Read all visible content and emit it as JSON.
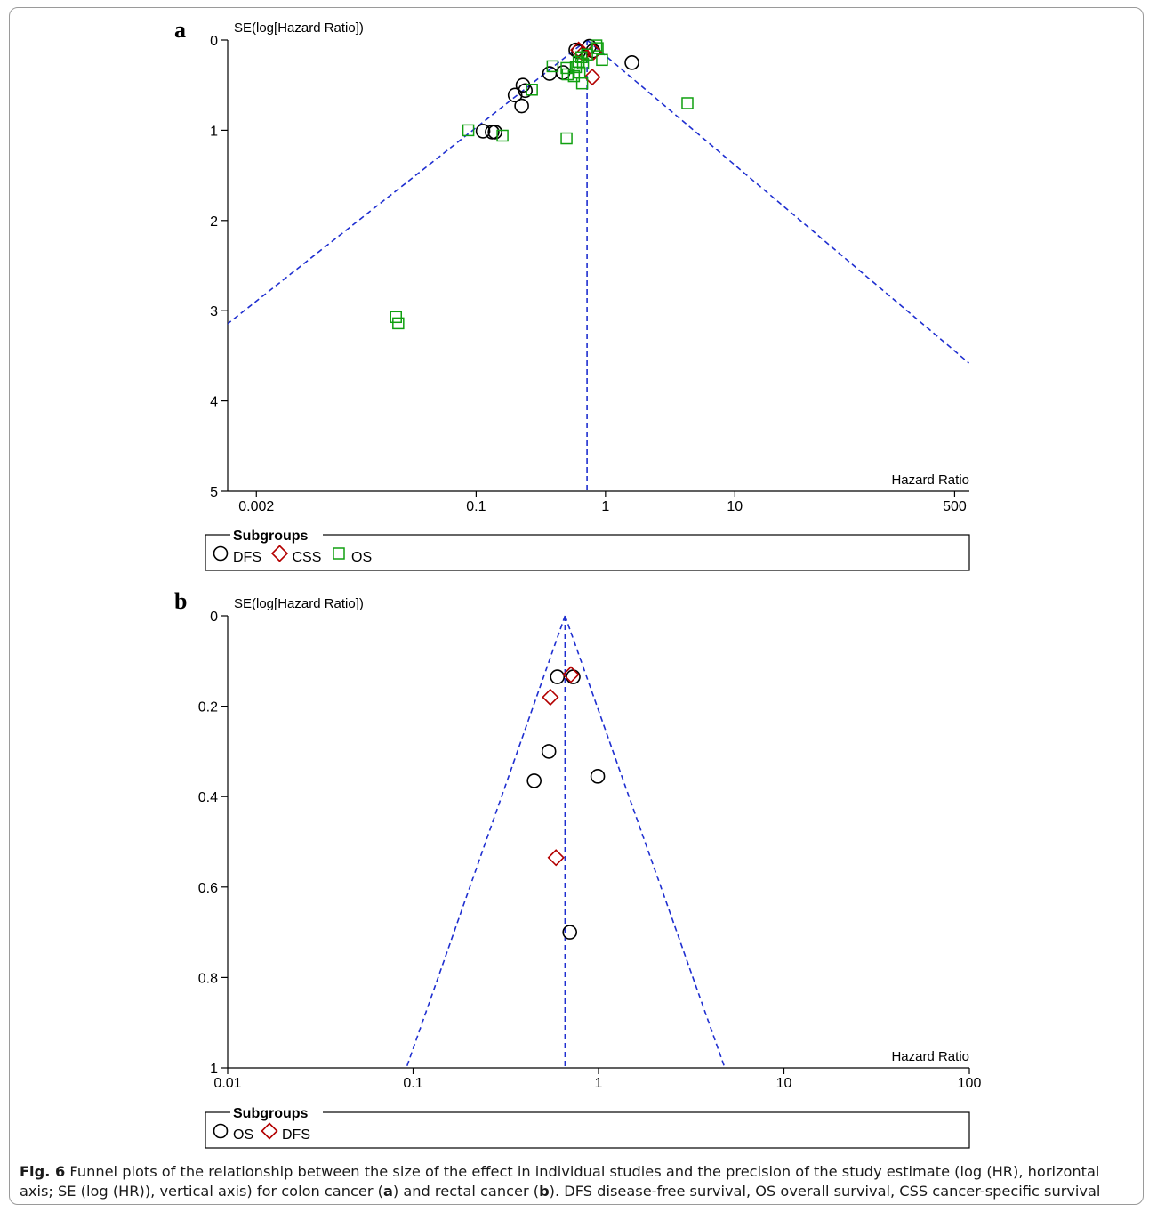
{
  "chart_data": [
    {
      "type": "scatter",
      "panel_label": "a",
      "ylabel": "SE(log[Hazard Ratio])",
      "xlabel": "Hazard Ratio",
      "x_scale": "log",
      "xlim": [
        0.0012,
        650
      ],
      "ylim": [
        0,
        5
      ],
      "y_reversed": true,
      "x_ticks": [
        {
          "v": 0.002,
          "label": "0.002"
        },
        {
          "v": 0.1,
          "label": "0.1"
        },
        {
          "v": 1,
          "label": "1"
        },
        {
          "v": 10,
          "label": "10"
        },
        {
          "v": 500,
          "label": "500"
        }
      ],
      "y_ticks": [
        {
          "v": 0,
          "label": "0"
        },
        {
          "v": 1,
          "label": "1"
        },
        {
          "v": 2,
          "label": "2"
        },
        {
          "v": 3,
          "label": "3"
        },
        {
          "v": 4,
          "label": "4"
        },
        {
          "v": 5,
          "label": "5"
        }
      ],
      "pooled_hr": 0.72,
      "funnel_lines": [
        {
          "points": [
            [
              0.72,
              0
            ],
            [
              0.00114,
              3.17
            ]
          ]
        },
        {
          "points": [
            [
              0.72,
              0
            ],
            [
              645,
              3.58
            ]
          ]
        }
      ],
      "legend": {
        "title": "Subgroups",
        "items": [
          {
            "label": "DFS",
            "marker": "circle",
            "color": "#000000"
          },
          {
            "label": "CSS",
            "marker": "diamond",
            "color": "#b30000"
          },
          {
            "label": "OS",
            "marker": "square",
            "color": "#10a010"
          }
        ]
      },
      "series": [
        {
          "name": "DFS",
          "marker": "circle",
          "color": "#000000",
          "points": [
            {
              "x": 0.59,
              "y": 0.11
            },
            {
              "x": 0.75,
              "y": 0.07
            },
            {
              "x": 0.62,
              "y": 0.13
            },
            {
              "x": 0.8,
              "y": 0.12
            },
            {
              "x": 1.6,
              "y": 0.25
            },
            {
              "x": 0.37,
              "y": 0.37
            },
            {
              "x": 0.47,
              "y": 0.36
            },
            {
              "x": 0.23,
              "y": 0.5
            },
            {
              "x": 0.24,
              "y": 0.56
            },
            {
              "x": 0.2,
              "y": 0.61
            },
            {
              "x": 0.225,
              "y": 0.73
            },
            {
              "x": 0.113,
              "y": 1.01
            },
            {
              "x": 0.133,
              "y": 1.02
            },
            {
              "x": 0.14,
              "y": 1.02
            }
          ]
        },
        {
          "name": "CSS",
          "marker": "diamond",
          "color": "#b30000",
          "points": [
            {
              "x": 0.62,
              "y": 0.11
            },
            {
              "x": 0.67,
              "y": 0.15
            },
            {
              "x": 0.81,
              "y": 0.13
            },
            {
              "x": 0.79,
              "y": 0.41
            }
          ]
        },
        {
          "name": "OS",
          "marker": "square",
          "color": "#10a010",
          "points": [
            {
              "x": 0.85,
              "y": 0.06
            },
            {
              "x": 0.87,
              "y": 0.09
            },
            {
              "x": 0.72,
              "y": 0.16
            },
            {
              "x": 0.65,
              "y": 0.19
            },
            {
              "x": 0.94,
              "y": 0.22
            },
            {
              "x": 0.62,
              "y": 0.24
            },
            {
              "x": 0.67,
              "y": 0.26
            },
            {
              "x": 0.39,
              "y": 0.29
            },
            {
              "x": 0.5,
              "y": 0.31
            },
            {
              "x": 0.59,
              "y": 0.3
            },
            {
              "x": 0.63,
              "y": 0.36
            },
            {
              "x": 0.51,
              "y": 0.38
            },
            {
              "x": 0.57,
              "y": 0.4
            },
            {
              "x": 0.66,
              "y": 0.48
            },
            {
              "x": 0.27,
              "y": 0.55
            },
            {
              "x": 4.3,
              "y": 0.7
            },
            {
              "x": 0.087,
              "y": 1.0
            },
            {
              "x": 0.16,
              "y": 1.06
            },
            {
              "x": 0.5,
              "y": 1.09
            },
            {
              "x": 0.024,
              "y": 3.07
            },
            {
              "x": 0.025,
              "y": 3.14
            }
          ]
        }
      ]
    },
    {
      "type": "scatter",
      "panel_label": "b",
      "ylabel": "SE(log[Hazard Ratio])",
      "xlabel": "Hazard Ratio",
      "x_scale": "log",
      "xlim": [
        0.01,
        100
      ],
      "ylim": [
        0,
        1
      ],
      "y_reversed": true,
      "x_ticks": [
        {
          "v": 0.01,
          "label": "0.01"
        },
        {
          "v": 0.1,
          "label": "0.1"
        },
        {
          "v": 1,
          "label": "1"
        },
        {
          "v": 10,
          "label": "10"
        },
        {
          "v": 100,
          "label": "100"
        }
      ],
      "y_ticks": [
        {
          "v": 0,
          "label": "0"
        },
        {
          "v": 0.2,
          "label": "0.2"
        },
        {
          "v": 0.4,
          "label": "0.4"
        },
        {
          "v": 0.6,
          "label": "0.6"
        },
        {
          "v": 0.8,
          "label": "0.8"
        },
        {
          "v": 1,
          "label": "1"
        }
      ],
      "pooled_hr": 0.66,
      "funnel_lines": [
        {
          "points": [
            [
              0.66,
              0
            ],
            [
              0.092,
              1.0
            ]
          ]
        },
        {
          "points": [
            [
              0.66,
              0
            ],
            [
              4.8,
              1.0
            ]
          ]
        }
      ],
      "legend": {
        "title": "Subgroups",
        "items": [
          {
            "label": "OS",
            "marker": "circle",
            "color": "#000000"
          },
          {
            "label": "DFS",
            "marker": "diamond",
            "color": "#b30000"
          }
        ]
      },
      "series": [
        {
          "name": "OS",
          "marker": "circle",
          "color": "#000000",
          "points": [
            {
              "x": 0.6,
              "y": 0.135
            },
            {
              "x": 0.73,
              "y": 0.135
            },
            {
              "x": 0.54,
              "y": 0.3
            },
            {
              "x": 0.45,
              "y": 0.365
            },
            {
              "x": 0.99,
              "y": 0.355
            },
            {
              "x": 0.7,
              "y": 0.7
            }
          ]
        },
        {
          "name": "DFS",
          "marker": "diamond",
          "color": "#b30000",
          "points": [
            {
              "x": 0.71,
              "y": 0.13
            },
            {
              "x": 0.55,
              "y": 0.18
            },
            {
              "x": 0.59,
              "y": 0.535
            }
          ]
        }
      ]
    }
  ],
  "caption": {
    "fig_label": "Fig. 6",
    "text_1": " Funnel plots of the relationship between the size of the effect in individual studies and the precision of the study estimate (log (HR), horizontal axis; SE (log (HR)), vertical axis) for colon cancer (",
    "a": "a",
    "text_2": ") and rectal cancer (",
    "b": "b",
    "text_3": "). DFS disease-free survival, OS overall survival, CSS cancer-specific survival"
  }
}
